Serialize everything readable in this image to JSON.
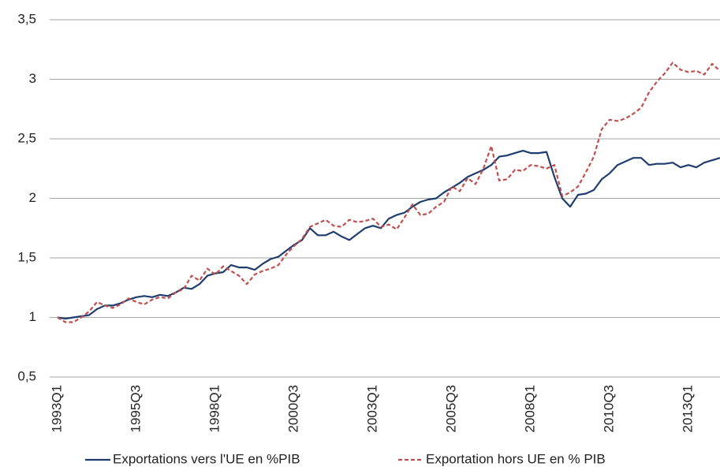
{
  "chart_data": {
    "type": "line",
    "categories": [
      "1993Q1",
      null,
      null,
      null,
      null,
      null,
      null,
      null,
      null,
      null,
      "1995Q3",
      null,
      null,
      null,
      null,
      null,
      null,
      null,
      null,
      null,
      "1998Q1",
      null,
      null,
      null,
      null,
      null,
      null,
      null,
      null,
      null,
      "2000Q3",
      null,
      null,
      null,
      null,
      null,
      null,
      null,
      null,
      null,
      "2003Q1",
      null,
      null,
      null,
      null,
      null,
      null,
      null,
      null,
      null,
      "2005Q3",
      null,
      null,
      null,
      null,
      null,
      null,
      null,
      null,
      null,
      "2008Q1",
      null,
      null,
      null,
      null,
      null,
      null,
      null,
      null,
      null,
      "2010Q3",
      null,
      null,
      null,
      null,
      null,
      null,
      null,
      null,
      null,
      "2013Q1",
      null,
      null,
      null,
      null
    ],
    "series": [
      {
        "name": "Exportations vers l'UE en %PIB",
        "color": "#1f3d6e",
        "dash": false,
        "values": [
          1.0,
          0.99,
          1.0,
          1.01,
          1.02,
          1.07,
          1.1,
          1.1,
          1.12,
          1.15,
          1.17,
          1.18,
          1.17,
          1.19,
          1.18,
          1.21,
          1.25,
          1.24,
          1.28,
          1.35,
          1.37,
          1.38,
          1.44,
          1.42,
          1.42,
          1.4,
          1.45,
          1.49,
          1.51,
          1.56,
          1.61,
          1.65,
          1.75,
          1.69,
          1.69,
          1.72,
          1.68,
          1.65,
          1.7,
          1.75,
          1.77,
          1.75,
          1.83,
          1.86,
          1.88,
          1.93,
          1.97,
          1.99,
          2.0,
          2.05,
          2.09,
          2.13,
          2.18,
          2.21,
          2.24,
          2.28,
          2.35,
          2.36,
          2.38,
          2.4,
          2.38,
          2.38,
          2.39,
          2.18,
          2.0,
          1.93,
          2.03,
          2.04,
          2.07,
          2.16,
          2.21,
          2.28,
          2.31,
          2.34,
          2.34,
          2.28,
          2.29,
          2.29,
          2.3,
          2.26,
          2.28,
          2.26,
          2.3,
          2.32,
          2.34
        ]
      },
      {
        "name": "Exportation hors UE en % PIB",
        "color": "#c0504d",
        "dash": true,
        "values": [
          1.0,
          0.96,
          0.96,
          1.0,
          1.05,
          1.13,
          1.1,
          1.08,
          1.11,
          1.16,
          1.13,
          1.11,
          1.15,
          1.17,
          1.16,
          1.21,
          1.24,
          1.35,
          1.31,
          1.41,
          1.36,
          1.43,
          1.39,
          1.35,
          1.28,
          1.36,
          1.39,
          1.41,
          1.44,
          1.53,
          1.6,
          1.66,
          1.76,
          1.79,
          1.82,
          1.77,
          1.76,
          1.82,
          1.8,
          1.81,
          1.83,
          1.76,
          1.78,
          1.74,
          1.84,
          1.95,
          1.86,
          1.87,
          1.93,
          1.97,
          2.1,
          2.06,
          2.17,
          2.12,
          2.25,
          2.44,
          2.15,
          2.16,
          2.24,
          2.23,
          2.28,
          2.27,
          2.25,
          2.28,
          2.02,
          2.05,
          2.1,
          2.22,
          2.35,
          2.58,
          2.66,
          2.65,
          2.67,
          2.71,
          2.76,
          2.89,
          2.98,
          3.05,
          3.14,
          3.08,
          3.06,
          3.07,
          3.04,
          3.13,
          3.07
        ]
      }
    ],
    "ylim": [
      0.5,
      3.5
    ],
    "yticks": [
      {
        "value": 0.5,
        "label": "0,5"
      },
      1,
      {
        "value": 1.5,
        "label": "1,5"
      },
      2,
      {
        "value": 2.5,
        "label": "2,5"
      },
      3,
      {
        "value": 3.5,
        "label": "3,5"
      }
    ],
    "grid": true,
    "legend": "bottom"
  }
}
